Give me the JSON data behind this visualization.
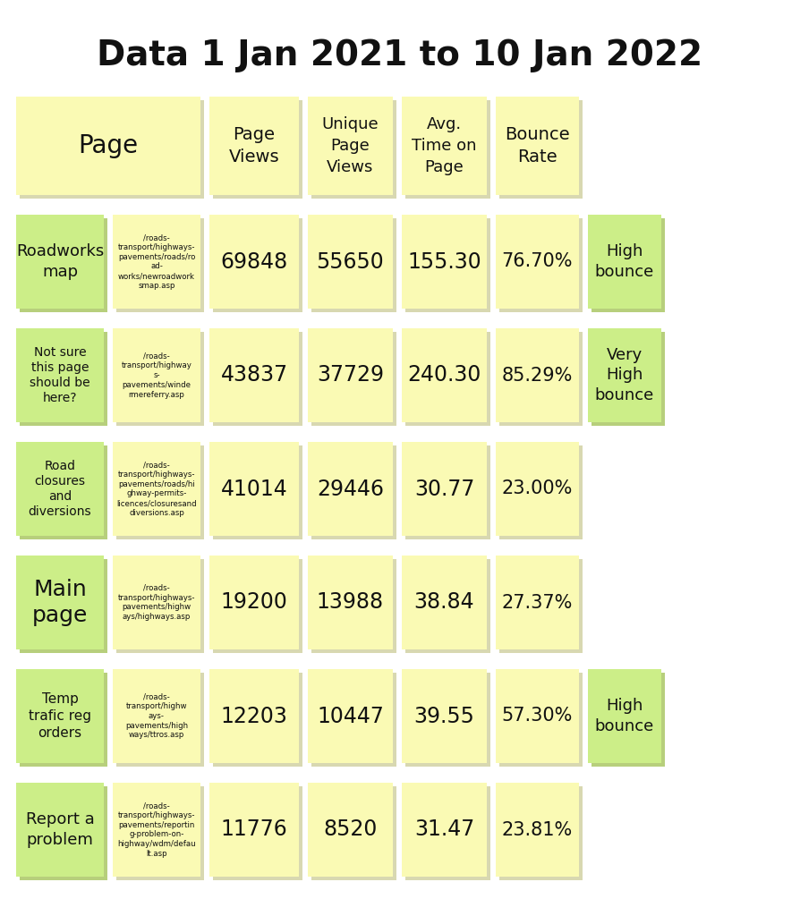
{
  "title": "Data 1 Jan 2021 to 10 Jan 2022",
  "title_fontsize": 28,
  "background_color": "#ffffff",
  "sticky_yellow": "#FAFAB4",
  "sticky_green": "#CCEE88",
  "rows": [
    {
      "name": "Roadworks\nmap",
      "url": "/roads-\ntransport/highways-\npavements/roads/ro\nad-\nworks/newroadwork\nsmap.asp",
      "page_views": "69848",
      "unique_views": "55650",
      "avg_time": "155.30",
      "bounce_rate": "76.70%",
      "bounce_label": "High\nbounce",
      "name_green": true,
      "bounce_green": true
    },
    {
      "name": "Not sure\nthis page\nshould be\nhere?",
      "url": "/roads-\ntransport/highway\ns-\npavements/winde\nrmereferry.asp",
      "page_views": "43837",
      "unique_views": "37729",
      "avg_time": "240.30",
      "bounce_rate": "85.29%",
      "bounce_label": "Very\nHigh\nbounce",
      "name_green": true,
      "bounce_green": true
    },
    {
      "name": "Road\nclosures\nand\ndiversions",
      "url": "/roads-\ntransport/highways-\npavements/roads/hi\nghway-permits-\nlicences/closuresand\ndiversions.asp",
      "page_views": "41014",
      "unique_views": "29446",
      "avg_time": "30.77",
      "bounce_rate": "23.00%",
      "bounce_label": "",
      "name_green": true,
      "bounce_green": false
    },
    {
      "name": "Main\npage",
      "url": "/roads-\ntransport/highways-\npavements/highw\nays/highways.asp",
      "page_views": "19200",
      "unique_views": "13988",
      "avg_time": "38.84",
      "bounce_rate": "27.37%",
      "bounce_label": "",
      "name_green": true,
      "bounce_green": false
    },
    {
      "name": "Temp\ntrafic reg\norders",
      "url": "/roads-\ntransport/highw\nays-\npavements/high\nways/ttros.asp",
      "page_views": "12203",
      "unique_views": "10447",
      "avg_time": "39.55",
      "bounce_rate": "57.30%",
      "bounce_label": "High\nbounce",
      "name_green": true,
      "bounce_green": true
    },
    {
      "name": "Report a\nproblem",
      "url": "/roads-\ntransport/highways-\npavements/reportin\ng-problem-on-\nhighway/wdm/defau\nlt.asp",
      "page_views": "11776",
      "unique_views": "8520",
      "avg_time": "31.47",
      "bounce_rate": "23.81%",
      "bounce_label": "",
      "name_green": true,
      "bounce_green": false
    }
  ]
}
